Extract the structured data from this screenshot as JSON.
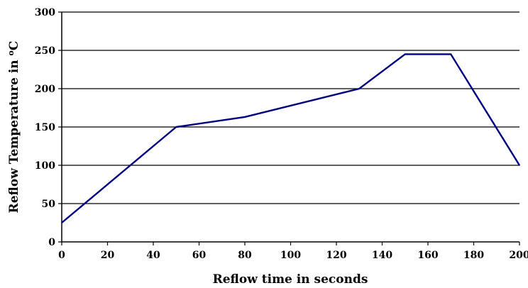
{
  "chart_data": {
    "type": "line",
    "title": "",
    "xlabel": "Reflow time in seconds",
    "ylabel_prefix": "Reflow Temperature in ",
    "ylabel_sup": "o",
    "ylabel_suffix": "C",
    "xlim": [
      0,
      200
    ],
    "ylim": [
      0,
      300
    ],
    "xticks": [
      0,
      20,
      40,
      60,
      80,
      100,
      120,
      140,
      160,
      180,
      200
    ],
    "yticks": [
      0,
      50,
      100,
      150,
      200,
      250,
      300
    ],
    "grid": "horizontal",
    "legend": "none",
    "series": [
      {
        "color": "#000080",
        "x": [
          0,
          50,
          80,
          130,
          150,
          170,
          200
        ],
        "y": [
          25,
          150,
          163,
          200,
          245,
          245,
          100
        ]
      }
    ]
  }
}
